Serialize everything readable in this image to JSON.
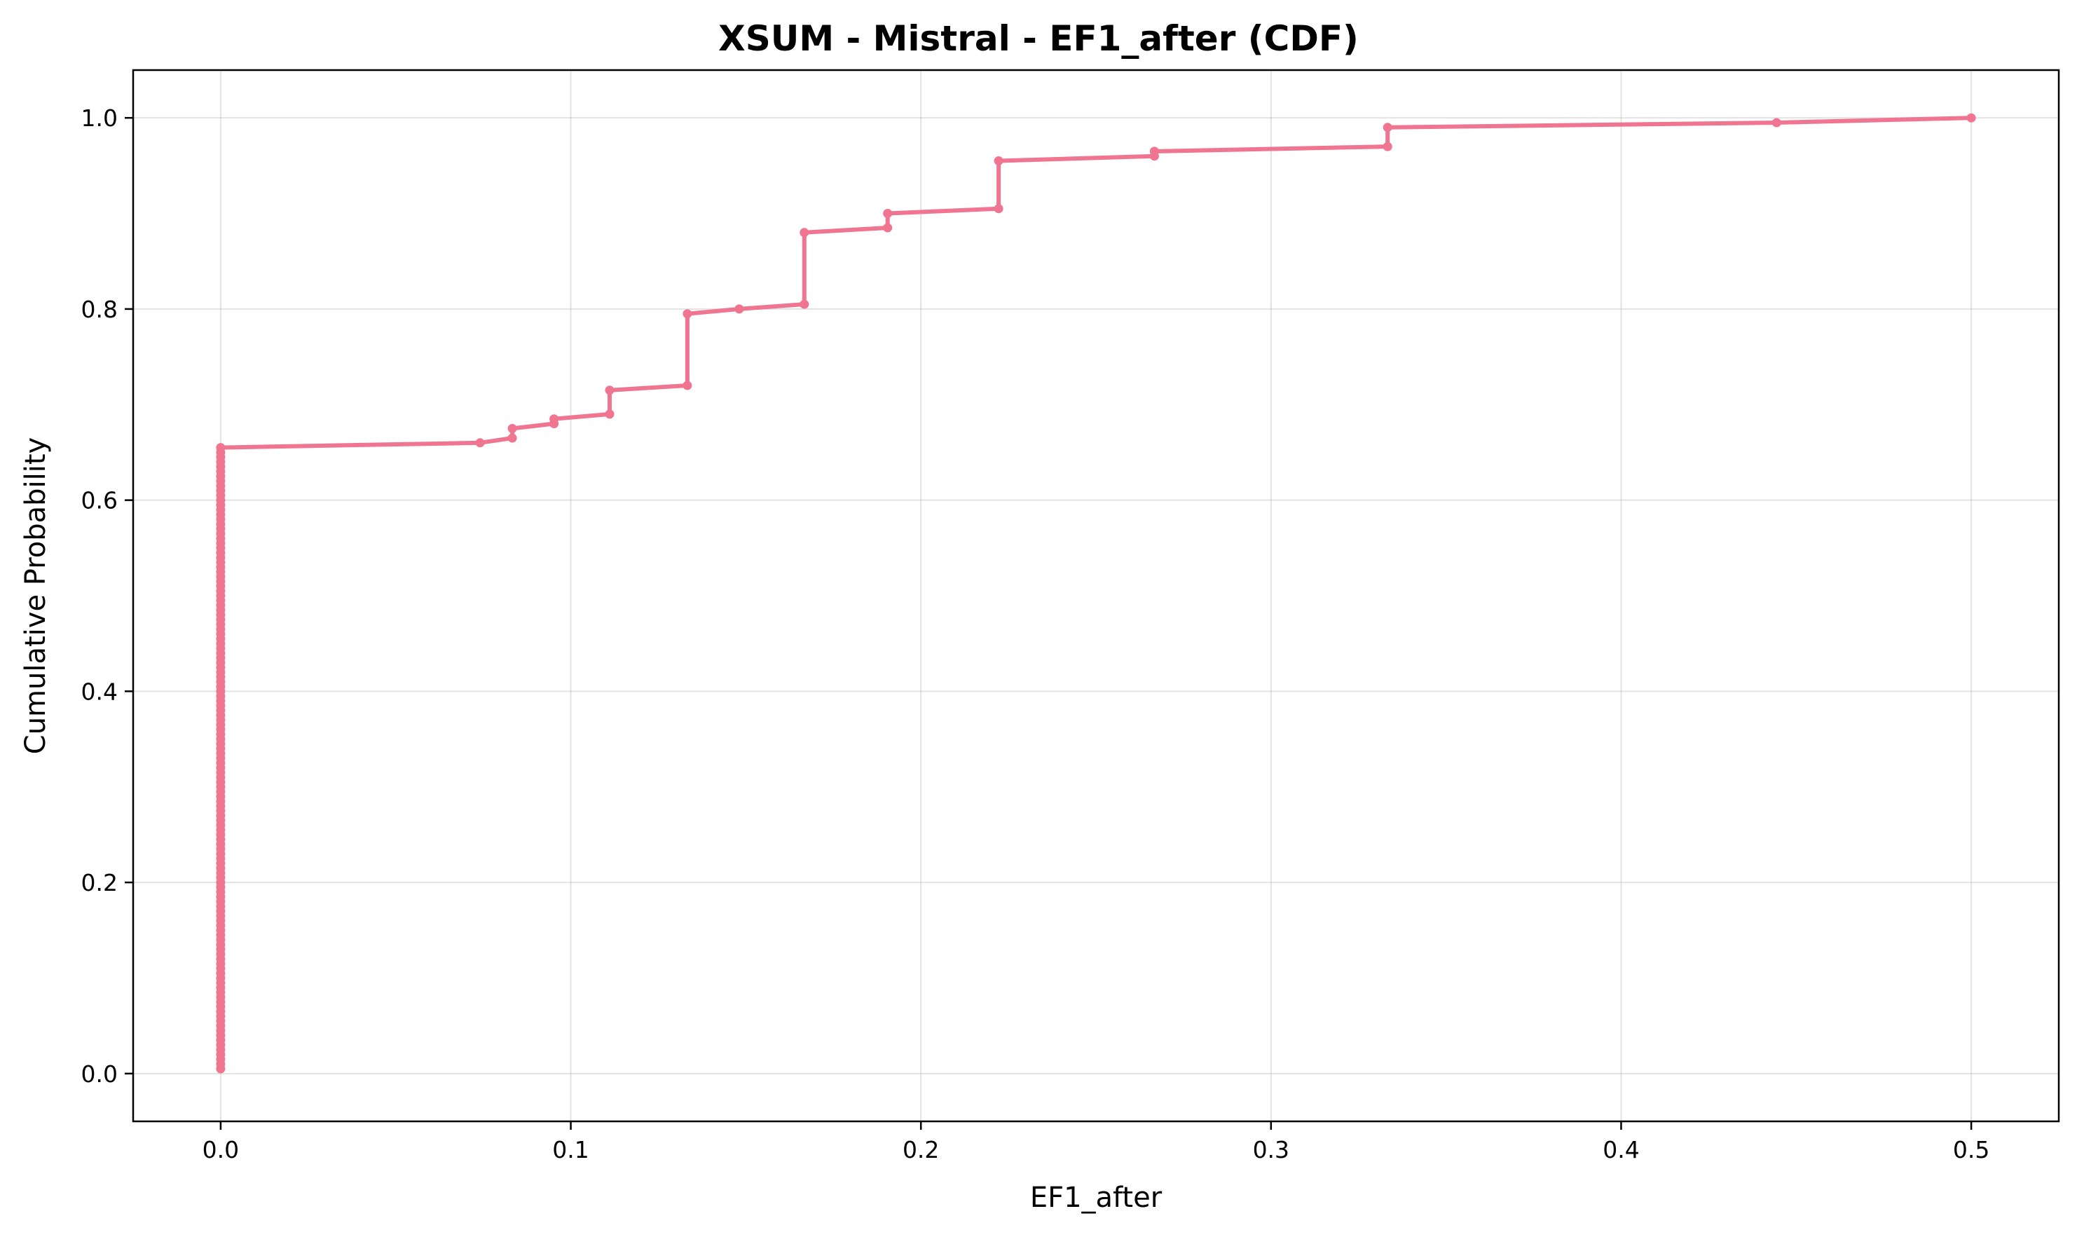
{
  "chart_data": {
    "type": "line",
    "title": "XSUM - Mistral - EF1_after (CDF)",
    "xlabel": "EF1_after",
    "ylabel": "Cumulative Probability",
    "xlim": [
      -0.025,
      0.525
    ],
    "ylim": [
      -0.05,
      1.05
    ],
    "xticks": [
      0.0,
      0.1,
      0.2,
      0.3,
      0.4,
      0.5
    ],
    "xtick_labels": [
      "0.0",
      "0.1",
      "0.2",
      "0.3",
      "0.4",
      "0.5"
    ],
    "yticks": [
      0.0,
      0.2,
      0.4,
      0.6,
      0.8,
      1.0
    ],
    "ytick_labels": [
      "0.0",
      "0.2",
      "0.4",
      "0.6",
      "0.8",
      "1.0"
    ],
    "grid": true,
    "series": [
      {
        "color": "#f07590",
        "marker": "circle",
        "x": [
          0.0,
          0.0741,
          0.0833,
          0.0833,
          0.0952,
          0.0952,
          0.1111,
          0.1111,
          0.1333,
          0.1333,
          0.1481,
          0.1667,
          0.1667,
          0.1905,
          0.1905,
          0.2222,
          0.2222,
          0.2667,
          0.2667,
          0.3333,
          0.3333,
          0.4444,
          0.5
        ],
        "y": [
          0.655,
          0.66,
          0.665,
          0.675,
          0.68,
          0.685,
          0.69,
          0.715,
          0.72,
          0.795,
          0.8,
          0.805,
          0.88,
          0.885,
          0.9,
          0.905,
          0.955,
          0.96,
          0.965,
          0.97,
          0.99,
          0.995,
          1.0
        ]
      }
    ]
  }
}
